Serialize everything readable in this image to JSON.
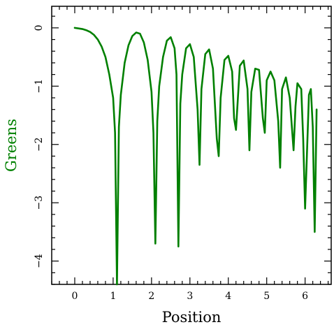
{
  "chart_data": {
    "type": "line",
    "title": "",
    "xlabel": "Position",
    "ylabel": "Greens",
    "xlim": [
      -0.6,
      6.68
    ],
    "ylim": [
      -4.4,
      0.37
    ],
    "xticks": [
      0,
      1,
      2,
      3,
      4,
      5,
      6
    ],
    "xtick_labels": [
      "0",
      "1",
      "2",
      "3",
      "4",
      "5",
      "6"
    ],
    "yticks": [
      0,
      -1,
      -2,
      -3,
      -4
    ],
    "ytick_labels": [
      "0",
      "−1",
      "−2",
      "−3",
      "−4"
    ],
    "grid": false,
    "legend": "none",
    "series": [
      {
        "name": "",
        "color": "#008000",
        "x": [
          0.0,
          0.1,
          0.2,
          0.3,
          0.4,
          0.5,
          0.6,
          0.7,
          0.8,
          0.9,
          1.0,
          1.05,
          1.1,
          1.15,
          1.2,
          1.3,
          1.4,
          1.5,
          1.6,
          1.7,
          1.8,
          1.9,
          2.0,
          2.05,
          2.1,
          2.15,
          2.2,
          2.3,
          2.4,
          2.5,
          2.6,
          2.65,
          2.7,
          2.75,
          2.8,
          2.9,
          3.0,
          3.1,
          3.2,
          3.25,
          3.3,
          3.4,
          3.5,
          3.6,
          3.7,
          3.75,
          3.8,
          3.9,
          4.0,
          4.1,
          4.15,
          4.2,
          4.3,
          4.4,
          4.5,
          4.55,
          4.6,
          4.7,
          4.8,
          4.9,
          4.95,
          5.0,
          5.1,
          5.2,
          5.3,
          5.35,
          5.4,
          5.5,
          5.6,
          5.7,
          5.75,
          5.8,
          5.9,
          5.95,
          6.0,
          6.1,
          6.15,
          6.2,
          6.25,
          6.3
        ],
        "y": [
          0.0,
          -0.01,
          -0.02,
          -0.04,
          -0.07,
          -0.12,
          -0.2,
          -0.32,
          -0.5,
          -0.8,
          -1.2,
          -1.8,
          -4.4,
          -1.7,
          -1.15,
          -0.6,
          -0.3,
          -0.14,
          -0.08,
          -0.1,
          -0.25,
          -0.55,
          -1.1,
          -1.8,
          -3.7,
          -1.6,
          -1.0,
          -0.5,
          -0.22,
          -0.16,
          -0.35,
          -0.8,
          -3.75,
          -1.3,
          -0.8,
          -0.35,
          -0.28,
          -0.5,
          -1.4,
          -2.35,
          -1.05,
          -0.45,
          -0.37,
          -0.7,
          -1.9,
          -2.2,
          -1.2,
          -0.55,
          -0.48,
          -0.75,
          -1.55,
          -1.75,
          -0.65,
          -0.56,
          -1.05,
          -2.1,
          -1.1,
          -0.7,
          -0.72,
          -1.55,
          -1.8,
          -0.9,
          -0.75,
          -0.9,
          -1.6,
          -2.4,
          -1.05,
          -0.85,
          -1.2,
          -2.1,
          -1.35,
          -0.95,
          -1.05,
          -1.9,
          -3.1,
          -1.15,
          -1.05,
          -1.7,
          -3.5,
          -1.4
        ]
      }
    ]
  }
}
